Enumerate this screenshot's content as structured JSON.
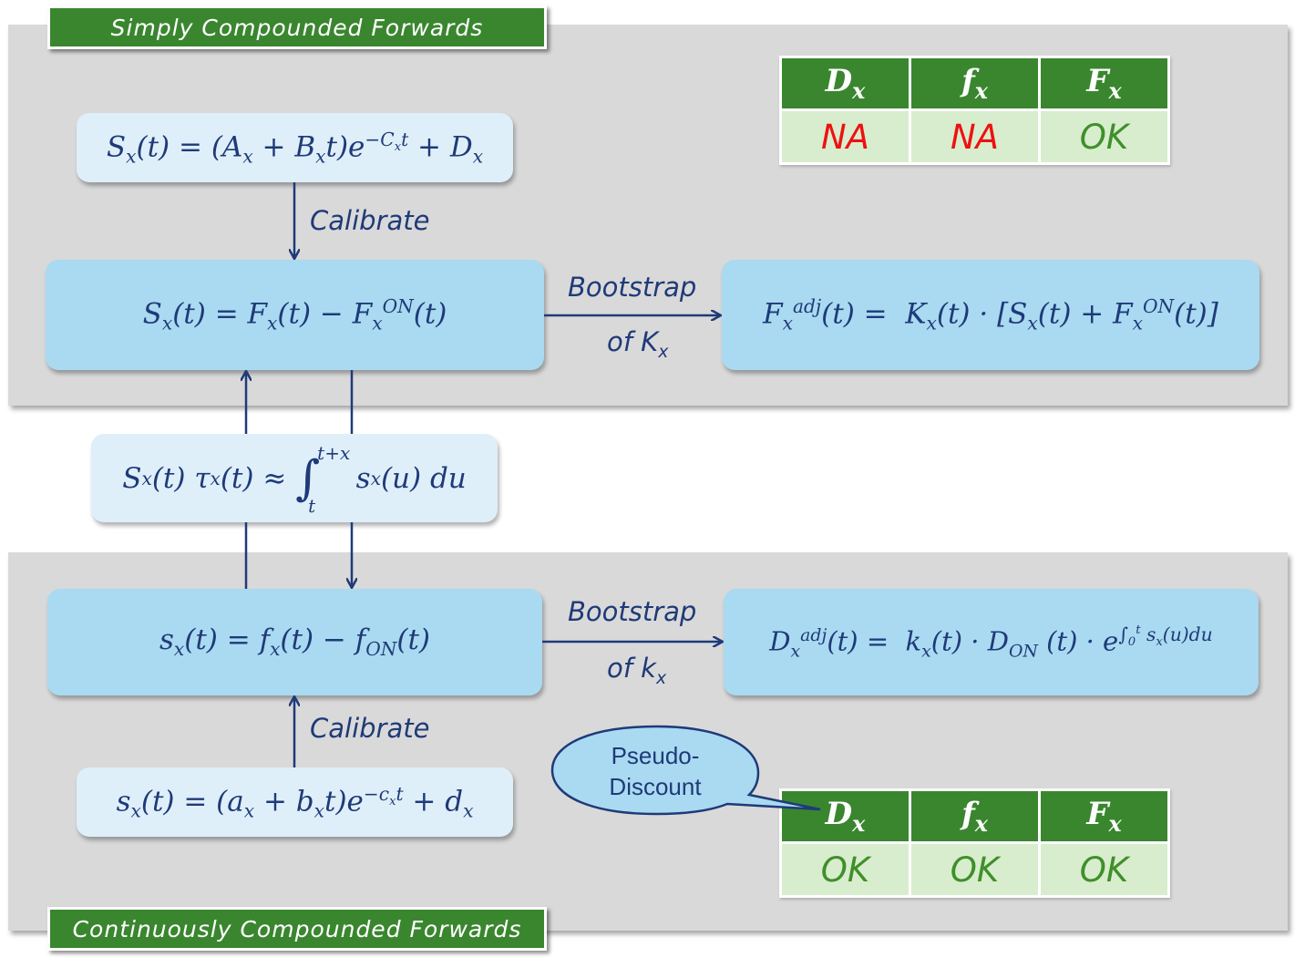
{
  "top": {
    "banner": "Simply Compounded Forwards",
    "calibration_eq": "S_x(t) = (A_x + B_x t)e^{-C_x t} + D_x",
    "calibrate_label": "Calibrate",
    "spread_eq": "S_x(t) = F_x(t) − F_x^{ON}(t)",
    "bootstrap_label": "Bootstrap",
    "of_label": "of K_x",
    "adjusted_eq": "F_x^{adj}(t) = K_x(t) · [S_x(t) + F_x^{ON}(t)]",
    "table": {
      "headers": [
        "D_x",
        "f_x",
        "F_x"
      ],
      "values": [
        "NA",
        "NA",
        "OK"
      ]
    }
  },
  "middle": {
    "link_eq": "S_x(t) τ_x(t) ≈ ∫_t^{t+x} s_x(u) du"
  },
  "bottom": {
    "banner": "Continuously Compounded Forwards",
    "calibration_eq": "s_x(t) = (a_x + b_x t)e^{-c_x t} + d_x",
    "calibrate_label": "Calibrate",
    "spread_eq": "s_x(t) = f_x(t) − f_{ON}(t)",
    "bootstrap_label": "Bootstrap",
    "of_label": "of k_x",
    "adjusted_eq": "D_x^{adj}(t) = k_x(t) · D_{ON}(t) · e^{∫_0^t s_x(u)du}",
    "callout": [
      "Pseudo-",
      "Discount"
    ],
    "table": {
      "headers": [
        "D_x",
        "f_x",
        "F_x"
      ],
      "values": [
        "OK",
        "OK",
        "OK"
      ]
    }
  },
  "colors": {
    "panel": "#d9d9d9",
    "banner_green": "#3a862f",
    "box_blue": "#a9daf1",
    "box_light": "#dfeff9",
    "text_navy": "#1f3a78",
    "na_red": "#ee1111",
    "ok_green": "#3f8f2a"
  }
}
